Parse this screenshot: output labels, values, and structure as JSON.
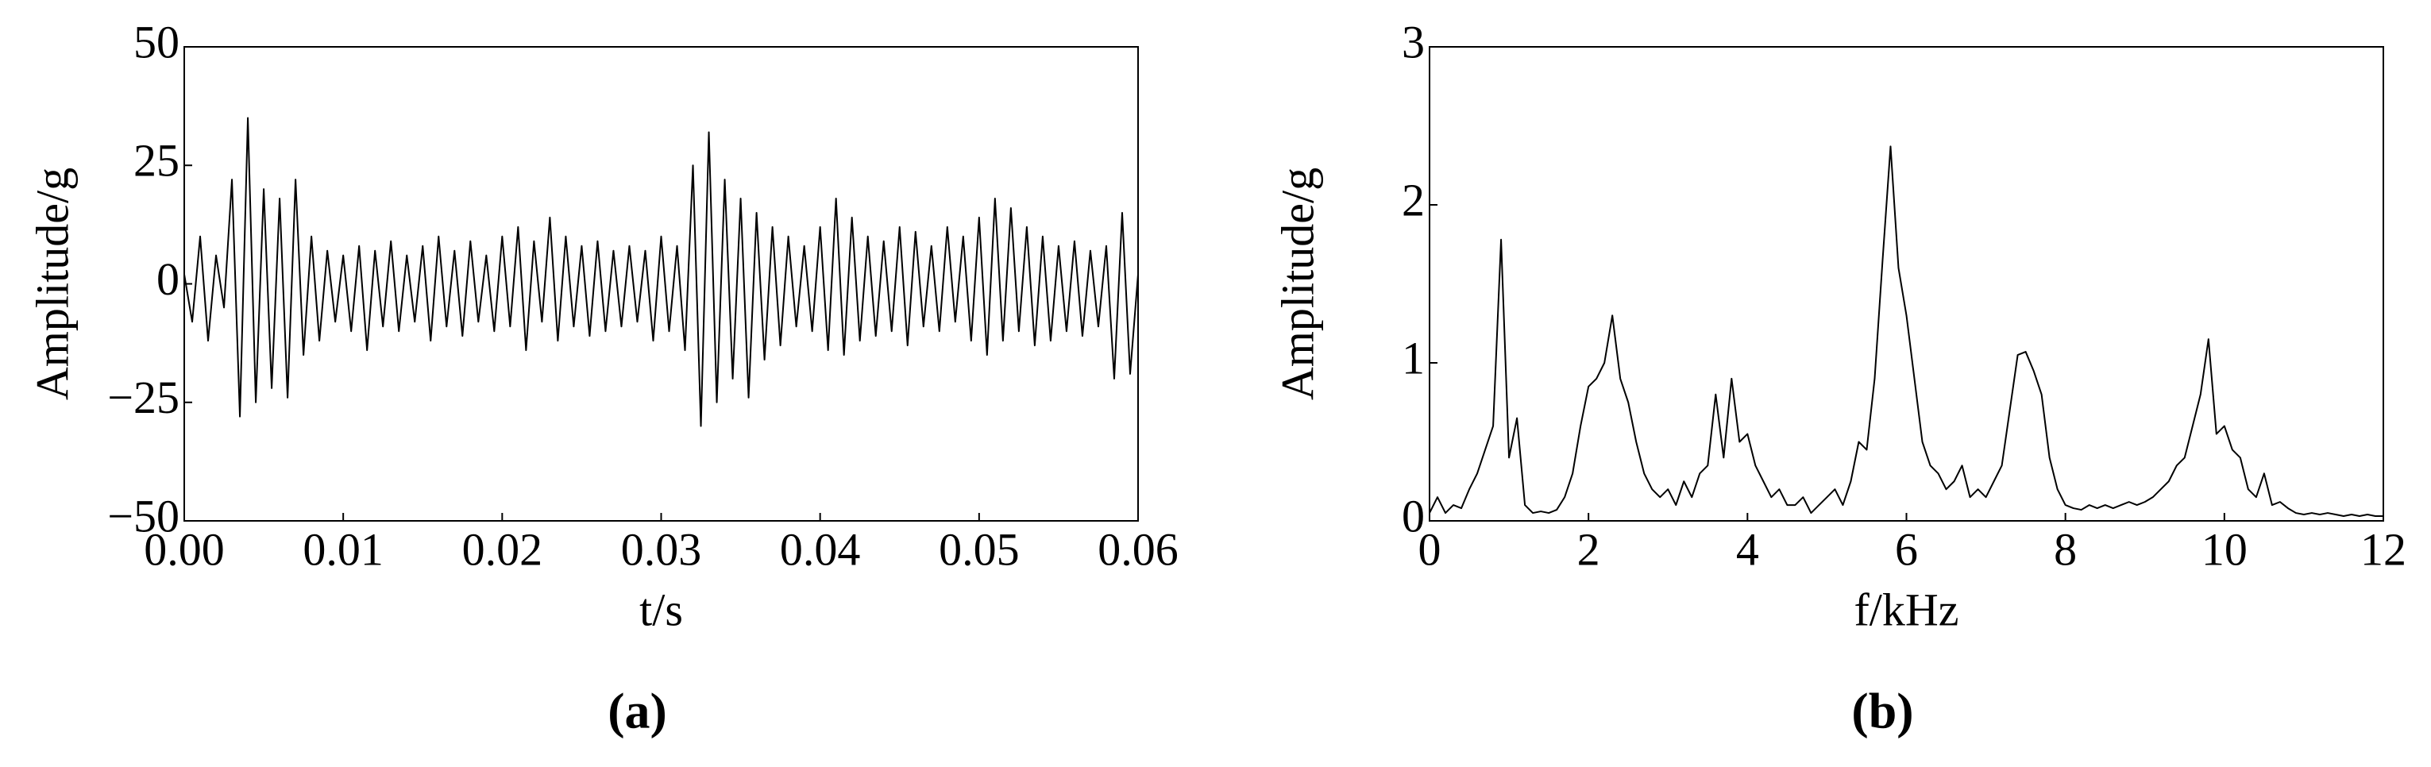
{
  "chart_data": [
    {
      "type": "line",
      "caption": "(a)",
      "xlabel": "t/s",
      "ylabel": "Amplitude/g",
      "color": "#000000",
      "x": [
        0,
        0.0005,
        0.001,
        0.0015,
        0.002,
        0.0025,
        0.003,
        0.0035,
        0.004,
        0.0045,
        0.005,
        0.0055,
        0.006,
        0.0065,
        0.007,
        0.0075,
        0.008,
        0.0085,
        0.009,
        0.0095,
        0.01,
        0.0105,
        0.011,
        0.0115,
        0.012,
        0.0125,
        0.013,
        0.0135,
        0.014,
        0.0145,
        0.015,
        0.0155,
        0.016,
        0.0165,
        0.017,
        0.0175,
        0.018,
        0.0185,
        0.019,
        0.0195,
        0.02,
        0.0205,
        0.021,
        0.0215,
        0.022,
        0.0225,
        0.023,
        0.0235,
        0.024,
        0.0245,
        0.025,
        0.0255,
        0.026,
        0.0265,
        0.027,
        0.0275,
        0.028,
        0.0285,
        0.029,
        0.0295,
        0.03,
        0.0305,
        0.031,
        0.0315,
        0.032,
        0.0325,
        0.033,
        0.0335,
        0.034,
        0.0345,
        0.035,
        0.0355,
        0.036,
        0.0365,
        0.037,
        0.0375,
        0.038,
        0.0385,
        0.039,
        0.0395,
        0.04,
        0.0405,
        0.041,
        0.0415,
        0.042,
        0.0425,
        0.043,
        0.0435,
        0.044,
        0.0445,
        0.045,
        0.0455,
        0.046,
        0.0465,
        0.047,
        0.0475,
        0.048,
        0.0485,
        0.049,
        0.0495,
        0.05,
        0.0505,
        0.051,
        0.0515,
        0.052,
        0.0525,
        0.053,
        0.0535,
        0.054,
        0.0545,
        0.055,
        0.0555,
        0.056,
        0.0565,
        0.057,
        0.0575,
        0.058,
        0.0585,
        0.059,
        0.0595,
        0.06
      ],
      "values": [
        2,
        -8,
        10,
        -12,
        6,
        -5,
        22,
        -28,
        35,
        -25,
        20,
        -22,
        18,
        -24,
        22,
        -15,
        10,
        -12,
        7,
        -8,
        6,
        -10,
        8,
        -14,
        7,
        -9,
        9,
        -10,
        6,
        -8,
        8,
        -12,
        10,
        -9,
        7,
        -11,
        9,
        -8,
        6,
        -10,
        10,
        -9,
        12,
        -14,
        9,
        -8,
        14,
        -12,
        10,
        -9,
        8,
        -11,
        9,
        -10,
        7,
        -9,
        8,
        -8,
        7,
        -12,
        10,
        -10,
        8,
        -14,
        25,
        -30,
        32,
        -25,
        22,
        -20,
        18,
        -24,
        15,
        -16,
        12,
        -13,
        10,
        -9,
        8,
        -10,
        12,
        -14,
        18,
        -15,
        14,
        -12,
        10,
        -11,
        9,
        -10,
        12,
        -13,
        11,
        -9,
        8,
        -10,
        12,
        -8,
        10,
        -12,
        14,
        -15,
        18,
        -12,
        16,
        -10,
        12,
        -13,
        10,
        -12,
        8,
        -10,
        9,
        -11,
        7,
        -9,
        8,
        -20,
        15,
        -19,
        2
      ],
      "xlim": [
        0,
        0.06
      ],
      "xticks": [
        {
          "value": 0,
          "label": "0.00"
        },
        {
          "value": 0.01,
          "label": "0.01"
        },
        {
          "value": 0.02,
          "label": "0.02"
        },
        {
          "value": 0.03,
          "label": "0.03"
        },
        {
          "value": 0.04,
          "label": "0.04"
        },
        {
          "value": 0.05,
          "label": "0.05"
        },
        {
          "value": 0.06,
          "label": "0.06"
        }
      ],
      "ylim": [
        -50,
        50
      ],
      "yticks": [
        {
          "value": -50,
          "label": "−50"
        },
        {
          "value": -25,
          "label": "−25"
        },
        0,
        25,
        50
      ]
    },
    {
      "type": "line",
      "caption": "(b)",
      "xlabel": "f/kHz",
      "ylabel": "Amplitude/g",
      "color": "#000000",
      "x": [
        0,
        0.1,
        0.2,
        0.3,
        0.4,
        0.5,
        0.6,
        0.7,
        0.8,
        0.9,
        1,
        1.1,
        1.2,
        1.3,
        1.4,
        1.5,
        1.6,
        1.7,
        1.8,
        1.9,
        2,
        2.1,
        2.2,
        2.3,
        2.4,
        2.5,
        2.6,
        2.7,
        2.8,
        2.9,
        3,
        3.1,
        3.2,
        3.3,
        3.4,
        3.5,
        3.6,
        3.7,
        3.8,
        3.9,
        4,
        4.1,
        4.2,
        4.3,
        4.4,
        4.5,
        4.6,
        4.7,
        4.8,
        4.9,
        5,
        5.1,
        5.2,
        5.3,
        5.4,
        5.5,
        5.6,
        5.7,
        5.8,
        5.9,
        6,
        6.1,
        6.2,
        6.3,
        6.4,
        6.5,
        6.6,
        6.7,
        6.8,
        6.9,
        7,
        7.1,
        7.2,
        7.3,
        7.4,
        7.5,
        7.6,
        7.7,
        7.8,
        7.9,
        8,
        8.1,
        8.2,
        8.3,
        8.4,
        8.5,
        8.6,
        8.7,
        8.8,
        8.9,
        9,
        9.1,
        9.2,
        9.3,
        9.4,
        9.5,
        9.6,
        9.7,
        9.8,
        9.9,
        10,
        10.1,
        10.2,
        10.3,
        10.4,
        10.5,
        10.6,
        10.7,
        10.8,
        10.9,
        11,
        11.1,
        11.2,
        11.3,
        11.4,
        11.5,
        11.6,
        11.7,
        11.8,
        11.9,
        12
      ],
      "values": [
        0.05,
        0.15,
        0.05,
        0.1,
        0.08,
        0.2,
        0.3,
        0.45,
        0.6,
        1.78,
        0.4,
        0.65,
        0.1,
        0.05,
        0.06,
        0.05,
        0.07,
        0.15,
        0.3,
        0.6,
        0.85,
        0.9,
        1.0,
        1.3,
        0.9,
        0.75,
        0.5,
        0.3,
        0.2,
        0.15,
        0.2,
        0.1,
        0.25,
        0.15,
        0.3,
        0.35,
        0.8,
        0.4,
        0.9,
        0.5,
        0.55,
        0.35,
        0.25,
        0.15,
        0.2,
        0.1,
        0.1,
        0.15,
        0.05,
        0.1,
        0.15,
        0.2,
        0.1,
        0.25,
        0.5,
        0.45,
        0.9,
        1.65,
        2.37,
        1.6,
        1.3,
        0.9,
        0.5,
        0.35,
        0.3,
        0.2,
        0.25,
        0.35,
        0.15,
        0.2,
        0.15,
        0.25,
        0.35,
        0.7,
        1.05,
        1.07,
        0.95,
        0.8,
        0.4,
        0.2,
        0.1,
        0.08,
        0.07,
        0.1,
        0.08,
        0.1,
        0.08,
        0.1,
        0.12,
        0.1,
        0.12,
        0.15,
        0.2,
        0.25,
        0.35,
        0.4,
        0.6,
        0.8,
        1.15,
        0.55,
        0.6,
        0.45,
        0.4,
        0.2,
        0.15,
        0.3,
        0.1,
        0.12,
        0.08,
        0.05,
        0.04,
        0.05,
        0.04,
        0.05,
        0.04,
        0.03,
        0.04,
        0.03,
        0.04,
        0.03,
        0.03
      ],
      "xlim": [
        0,
        12
      ],
      "xticks": [
        0,
        2,
        4,
        6,
        8,
        10,
        12
      ],
      "ylim": [
        0,
        3
      ],
      "yticks": [
        0,
        1,
        2,
        3
      ]
    }
  ]
}
